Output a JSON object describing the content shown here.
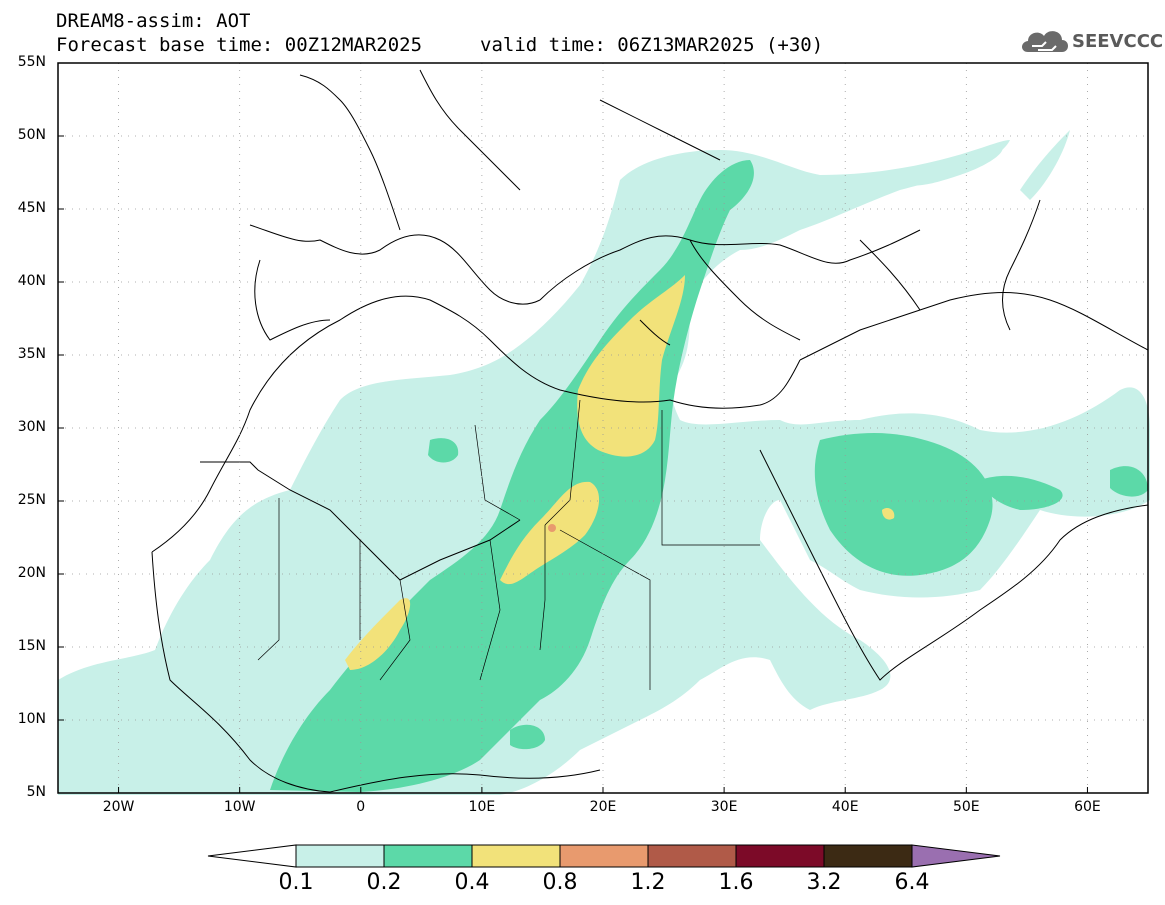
{
  "header": {
    "title_line1": "DREAM8-assim: AOT",
    "title_line2": "Forecast base time: 00Z12MAR2025",
    "valid_time": "valid time: 06Z13MAR2025 (+30)"
  },
  "logo": {
    "text": "SEEVCCC",
    "icon": "cloud-icon"
  },
  "map": {
    "lat_range": [
      5,
      55
    ],
    "lon_range": [
      -25,
      65
    ],
    "lat_labels": [
      "55N",
      "50N",
      "45N",
      "40N",
      "35N",
      "30N",
      "25N",
      "20N",
      "15N",
      "10N",
      "5N"
    ],
    "lon_labels": [
      "20W",
      "10W",
      "0",
      "10E",
      "20E",
      "30E",
      "40E",
      "50E",
      "60E"
    ],
    "grid": "dotted"
  },
  "colorbar": {
    "labels": [
      "0.1",
      "0.2",
      "0.4",
      "0.8",
      "1.2",
      "1.6",
      "3.2",
      "6.4"
    ],
    "colors": [
      "#c8f0e8",
      "#5cd9a8",
      "#f2e27a",
      "#e89a6e",
      "#b05a48",
      "#7c0a28",
      "#3c2a14",
      "#9a6fb0"
    ],
    "extend_low_color": "#ffffff"
  }
}
